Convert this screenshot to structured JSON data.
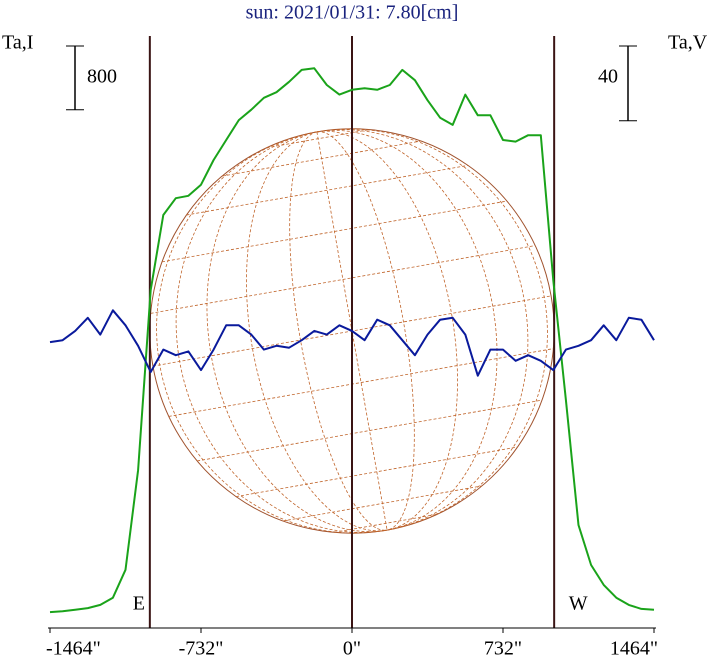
{
  "chart_data": {
    "type": "line",
    "title": "sun: 2021/01/31: 7.80[cm]",
    "ylabel": "Ta,I",
    "y2label": "Ta,V",
    "x": [
      -1464,
      -1403,
      -1342,
      -1281,
      -1220,
      -1159,
      -1098,
      -1037,
      -976,
      -915,
      -854,
      -793,
      -732,
      -671,
      -610,
      -549,
      -488,
      -427,
      -366,
      -305,
      -244,
      -183,
      -122,
      -61,
      0,
      61,
      122,
      183,
      244,
      305,
      366,
      427,
      488,
      549,
      610,
      671,
      732,
      793,
      854,
      915,
      976,
      1037,
      1098,
      1159,
      1220,
      1281,
      1342,
      1403,
      1464
    ],
    "xlim": [
      -1464,
      1464
    ],
    "xticks": [
      {
        "value": -1464,
        "label": "-1464\""
      },
      {
        "value": -732,
        "label": "-732\""
      },
      {
        "value": 0,
        "label": "0\""
      },
      {
        "value": 732,
        "label": "732\""
      },
      {
        "value": 1464,
        "label": "1464\""
      }
    ],
    "ylim": [
      0,
      7500
    ],
    "y2lim": [
      -160,
      160
    ],
    "series": [
      {
        "name": "Ta,I",
        "color": "#1aa31a",
        "values": [
          200,
          210,
          230,
          250,
          290,
          380,
          730,
          1980,
          4240,
          5180,
          5390,
          5420,
          5560,
          5870,
          6120,
          6370,
          6500,
          6650,
          6720,
          6850,
          7000,
          7020,
          6810,
          6690,
          6750,
          6770,
          6750,
          6810,
          7000,
          6870,
          6620,
          6400,
          6310,
          6690,
          6430,
          6430,
          6120,
          6100,
          6180,
          6180,
          4360,
          2860,
          1290,
          790,
          540,
          380,
          290,
          240,
          230
        ]
      },
      {
        "name": "Ta,V",
        "color": "#0a1a9c",
        "axis": "y2",
        "values": [
          -7,
          -6,
          -1,
          6,
          -3,
          10,
          2,
          -9,
          -23,
          -11,
          -14,
          -12,
          -22,
          -11,
          2,
          2,
          -3,
          -11,
          -9,
          -10,
          -6,
          -1,
          -3,
          2,
          -1,
          -6,
          5,
          2,
          -6,
          -14,
          -3,
          5,
          6,
          -3,
          -25,
          -11,
          -11,
          -17,
          -14,
          -17,
          -22,
          -11,
          -9,
          -6,
          2,
          -6,
          6,
          5,
          -6
        ]
      }
    ],
    "scale_bars": [
      {
        "axis": "y",
        "value": 800
      },
      {
        "axis": "y2",
        "value": 40
      }
    ],
    "vlines": [
      {
        "value": -980,
        "label": "E"
      },
      {
        "value": 0
      },
      {
        "value": 980,
        "label": "W"
      }
    ]
  }
}
